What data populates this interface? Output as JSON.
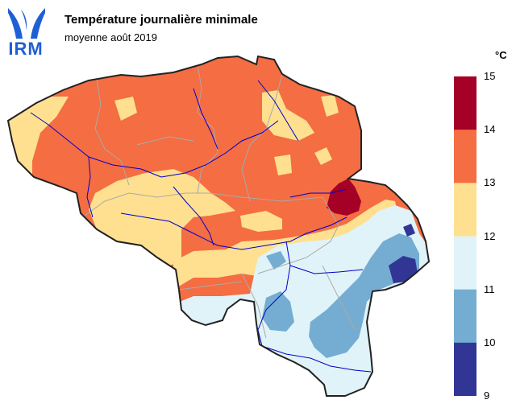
{
  "header": {
    "logo_text": "IRM",
    "title": "Température journalière minimale",
    "subtitle": "moyenne août 2019"
  },
  "legend": {
    "unit": "°C",
    "bins": [
      {
        "from": 9,
        "to": 10,
        "color": "#313695"
      },
      {
        "from": 10,
        "to": 11,
        "color": "#74add1"
      },
      {
        "from": 11,
        "to": 12,
        "color": "#e0f3f8"
      },
      {
        "from": 12,
        "to": 13,
        "color": "#fee090"
      },
      {
        "from": 13,
        "to": 14,
        "color": "#f46d43"
      },
      {
        "from": 14,
        "to": 15,
        "color": "#a50026"
      }
    ],
    "ticks": [
      "15",
      "14",
      "13",
      "12",
      "11",
      "10",
      "9"
    ]
  },
  "map": {
    "region": "Belgium",
    "colors": {
      "border": "#222222",
      "province_lines": "#aaaaaa",
      "rivers": "#0000cc"
    }
  }
}
